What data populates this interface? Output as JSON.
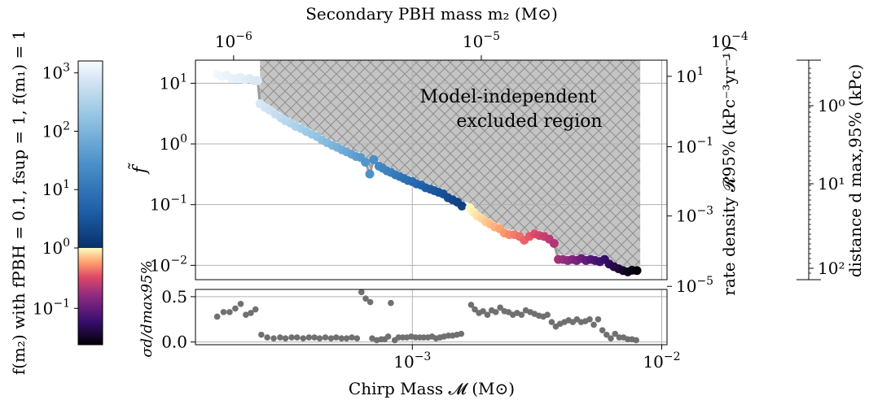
{
  "chart_data": [
    {
      "type": "scatter",
      "xscale": "log",
      "yscale": "log",
      "xlabel": "Chirp Mass 𝓜 (M⊙)",
      "xlim": [
        0.000135,
        0.0105
      ],
      "xticks": [
        {
          "value": 0.001,
          "label": "10",
          "exp": "−3"
        },
        {
          "value": 0.01,
          "label": "10",
          "exp": "−2"
        }
      ],
      "top_axis": {
        "label": "Secondary PBH mass m₂ (M⊙)",
        "ticks": [
          {
            "x": 0.000192,
            "label": "10",
            "exp": "−6"
          },
          {
            "x": 0.00189,
            "label": "10",
            "exp": "−5"
          },
          {
            "x": 0.0187,
            "label": "10",
            "exp": "−4"
          }
        ]
      },
      "ylabel": "f̃",
      "ylim": [
        0.0058,
        24
      ],
      "yticks": [
        {
          "value": 0.01,
          "label": "10",
          "exp": "−2"
        },
        {
          "value": 0.1,
          "label": "10",
          "exp": "−1"
        },
        {
          "value": 1,
          "label": "10",
          "exp": "0"
        },
        {
          "value": 10,
          "label": "10",
          "exp": "1"
        }
      ],
      "right_axis": {
        "label": "rate density 𝓡95% (kPc⁻³yr⁻¹)",
        "ticks": [
          {
            "y": 13,
            "label": "10",
            "exp": "1"
          },
          {
            "y": 0.9,
            "label": "10",
            "exp": "−1"
          },
          {
            "y": 0.065,
            "label": "10",
            "exp": "−3"
          },
          {
            "y": 0.0045,
            "label": "10",
            "exp": "−5"
          }
        ]
      },
      "far_right_axis": {
        "label": "distance d max,95% (kPc)",
        "ticks": [
          "10⁰",
          "10¹",
          "10²"
        ]
      },
      "annotation": [
        "Model-independent",
        "excluded region"
      ],
      "grid": true,
      "excluded_region": {
        "fill": "#c0c0c0",
        "hatch": "cross",
        "x_start": 0.000245,
        "x_end": 0.0082
      },
      "series": [
        {
          "points": [
            [
              0.000165,
              14
            ],
            [
              0.000172,
              13
            ],
            [
              0.00018,
              13.5
            ],
            [
              0.000188,
              12
            ],
            [
              0.000196,
              12
            ],
            [
              0.000205,
              12.5
            ],
            [
              0.000213,
              11.5
            ],
            [
              0.000222,
              12
            ],
            [
              0.000232,
              11
            ],
            [
              0.00024,
              11
            ],
            [
              0.000245,
              4.6
            ],
            [
              0.000256,
              4.0
            ],
            [
              0.000268,
              3.6
            ],
            [
              0.000282,
              3.1
            ],
            [
              0.000297,
              2.7
            ],
            [
              0.00031,
              2.4
            ],
            [
              0.000325,
              2.2
            ],
            [
              0.00034,
              1.95
            ],
            [
              0.000358,
              1.8
            ],
            [
              0.000376,
              1.6
            ],
            [
              0.000395,
              1.45
            ],
            [
              0.000415,
              1.32
            ],
            [
              0.000435,
              1.15
            ],
            [
              0.000455,
              1.05
            ],
            [
              0.000478,
              0.95
            ],
            [
              0.0005,
              0.88
            ],
            [
              0.000522,
              0.8
            ],
            [
              0.000545,
              0.74
            ],
            [
              0.00057,
              0.68
            ],
            [
              0.000595,
              0.62
            ],
            [
              0.00062,
              0.6
            ],
            [
              0.000648,
              0.5
            ],
            [
              0.000675,
              0.32
            ],
            [
              0.0007,
              0.55
            ],
            [
              0.000735,
              0.43
            ],
            [
              0.00076,
              0.4
            ],
            [
              0.00079,
              0.36
            ],
            [
              0.00082,
              0.34
            ],
            [
              0.000855,
              0.31
            ],
            [
              0.00089,
              0.29
            ],
            [
              0.000925,
              0.27
            ],
            [
              0.00096,
              0.25
            ],
            [
              0.001,
              0.24
            ],
            [
              0.00104,
              0.22
            ],
            [
              0.001085,
              0.21
            ],
            [
              0.00113,
              0.19
            ],
            [
              0.00118,
              0.18
            ],
            [
              0.001225,
              0.17
            ],
            [
              0.001275,
              0.16
            ],
            [
              0.00133,
              0.15
            ],
            [
              0.00139,
              0.13
            ],
            [
              0.00145,
              0.12
            ],
            [
              0.001515,
              0.11
            ],
            [
              0.00158,
              0.095
            ],
            [
              0.0017,
              0.088
            ],
            [
              0.00176,
              0.075
            ],
            [
              0.00182,
              0.065
            ],
            [
              0.00189,
              0.06
            ],
            [
              0.00197,
              0.052
            ],
            [
              0.00205,
              0.048
            ],
            [
              0.00214,
              0.043
            ],
            [
              0.00224,
              0.04
            ],
            [
              0.00234,
              0.034
            ],
            [
              0.00245,
              0.032
            ],
            [
              0.00257,
              0.032
            ],
            [
              0.00269,
              0.03
            ],
            [
              0.00281,
              0.026
            ],
            [
              0.00295,
              0.03
            ],
            [
              0.00309,
              0.033
            ],
            [
              0.00323,
              0.031
            ],
            [
              0.00338,
              0.03
            ],
            [
              0.00354,
              0.027
            ],
            [
              0.0037,
              0.023
            ],
            [
              0.00385,
              0.0125
            ],
            [
              0.00402,
              0.0125
            ],
            [
              0.0042,
              0.012
            ],
            [
              0.00438,
              0.0125
            ],
            [
              0.00456,
              0.012
            ],
            [
              0.00476,
              0.013
            ],
            [
              0.00497,
              0.012
            ],
            [
              0.00519,
              0.0125
            ],
            [
              0.00541,
              0.012
            ],
            [
              0.00565,
              0.0115
            ],
            [
              0.0059,
              0.0125
            ],
            [
              0.00616,
              0.0105
            ],
            [
              0.00643,
              0.0095
            ],
            [
              0.00671,
              0.0088
            ],
            [
              0.007,
              0.0082
            ],
            [
              0.00731,
              0.0078
            ],
            [
              0.0076,
              0.0083
            ],
            [
              0.00795,
              0.0082
            ]
          ],
          "color_by": "f(m2)"
        }
      ]
    },
    {
      "type": "scatter",
      "xscale": "log",
      "ylabel": "σd/dmax95%",
      "ylim": [
        -0.03,
        0.58
      ],
      "yticks": [
        {
          "value": 0.0,
          "label": "0.0"
        },
        {
          "value": 0.5,
          "label": "0.5"
        }
      ],
      "series": [
        {
          "color": "#707070",
          "points": [
            [
              0.000165,
              0.28
            ],
            [
              0.000175,
              0.33
            ],
            [
              0.000185,
              0.33
            ],
            [
              0.000195,
              0.37
            ],
            [
              0.000205,
              0.42
            ],
            [
              0.000215,
              0.3
            ],
            [
              0.000225,
              0.32
            ],
            [
              0.000235,
              0.36
            ],
            [
              0.000248,
              0.08
            ],
            [
              0.000262,
              0.05
            ],
            [
              0.000278,
              0.04
            ],
            [
              0.000295,
              0.05
            ],
            [
              0.00031,
              0.04
            ],
            [
              0.000328,
              0.05
            ],
            [
              0.000345,
              0.05
            ],
            [
              0.000365,
              0.04
            ],
            [
              0.000385,
              0.05
            ],
            [
              0.000405,
              0.05
            ],
            [
              0.000425,
              0.04
            ],
            [
              0.000448,
              0.05
            ],
            [
              0.000472,
              0.04
            ],
            [
              0.000495,
              0.05
            ],
            [
              0.00052,
              0.04
            ],
            [
              0.000545,
              0.04
            ],
            [
              0.000572,
              0.05
            ],
            [
              0.0006,
              0.04
            ],
            [
              0.000625,
              0.55
            ],
            [
              0.00065,
              0.48
            ],
            [
              0.000678,
              0.44
            ],
            [
              0.00069,
              0.04
            ],
            [
              0.00072,
              0.02
            ],
            [
              0.00075,
              0.03
            ],
            [
              0.000775,
              0.03
            ],
            [
              0.0008,
              0.06
            ],
            [
              0.00082,
              0.43
            ],
            [
              0.00085,
              0.02
            ],
            [
              0.00088,
              0.05
            ],
            [
              0.000915,
              0.05
            ],
            [
              0.00095,
              0.05
            ],
            [
              0.00099,
              0.06
            ],
            [
              0.00103,
              0.05
            ],
            [
              0.00107,
              0.05
            ],
            [
              0.00111,
              0.05
            ],
            [
              0.001155,
              0.05
            ],
            [
              0.0012,
              0.06
            ],
            [
              0.001245,
              0.04
            ],
            [
              0.00129,
              0.05
            ],
            [
              0.00134,
              0.06
            ],
            [
              0.001395,
              0.07
            ],
            [
              0.00145,
              0.07
            ],
            [
              0.00151,
              0.08
            ],
            [
              0.00157,
              0.09
            ],
            [
              0.00172,
              0.41
            ],
            [
              0.00178,
              0.36
            ],
            [
              0.00185,
              0.32
            ],
            [
              0.00192,
              0.34
            ],
            [
              0.002,
              0.3
            ],
            [
              0.00208,
              0.35
            ],
            [
              0.00216,
              0.33
            ],
            [
              0.00225,
              0.38
            ],
            [
              0.00234,
              0.34
            ],
            [
              0.00243,
              0.33
            ],
            [
              0.00253,
              0.3
            ],
            [
              0.00263,
              0.32
            ],
            [
              0.00274,
              0.3
            ],
            [
              0.00285,
              0.35
            ],
            [
              0.00297,
              0.33
            ],
            [
              0.00309,
              0.31
            ],
            [
              0.00322,
              0.29
            ],
            [
              0.00335,
              0.28
            ],
            [
              0.00348,
              0.3
            ],
            [
              0.00362,
              0.22
            ],
            [
              0.00376,
              0.17
            ],
            [
              0.00391,
              0.2
            ],
            [
              0.00407,
              0.22
            ],
            [
              0.00423,
              0.24
            ],
            [
              0.0044,
              0.22
            ],
            [
              0.00457,
              0.25
            ],
            [
              0.00475,
              0.22
            ],
            [
              0.00494,
              0.23
            ],
            [
              0.00514,
              0.25
            ],
            [
              0.00534,
              0.19
            ],
            [
              0.00556,
              0.25
            ],
            [
              0.00578,
              0.13
            ],
            [
              0.00601,
              0.08
            ],
            [
              0.00625,
              0.04
            ],
            [
              0.0065,
              0.09
            ],
            [
              0.00676,
              0.05
            ],
            [
              0.00703,
              0.05
            ],
            [
              0.00731,
              0.03
            ],
            [
              0.0076,
              0.03
            ],
            [
              0.0079,
              0.02
            ]
          ]
        }
      ]
    },
    {
      "type": "heatmap",
      "role": "colorbar",
      "label": "f(m₂) with fPBH = 0.1, fsup = 1, f(m₁) = 1",
      "scale": "log",
      "lim": [
        0.025,
        1600
      ],
      "ticks": [
        {
          "value": 0.1,
          "label": "10",
          "exp": "−1"
        },
        {
          "value": 1,
          "label": "10",
          "exp": "0"
        },
        {
          "value": 10,
          "label": "10",
          "exp": "1"
        },
        {
          "value": 100,
          "label": "10",
          "exp": "2"
        },
        {
          "value": 1000,
          "label": "10",
          "exp": "3"
        }
      ],
      "colormap_upper": [
        "#08306b",
        "#1f5fa8",
        "#4a90c8",
        "#93c4e3",
        "#d6e6f4",
        "#f7fbff"
      ],
      "colormap_lower": [
        "#000004",
        "#3b0f70",
        "#8c2981",
        "#de4968",
        "#fe9f6d",
        "#fcfdbf"
      ]
    }
  ]
}
